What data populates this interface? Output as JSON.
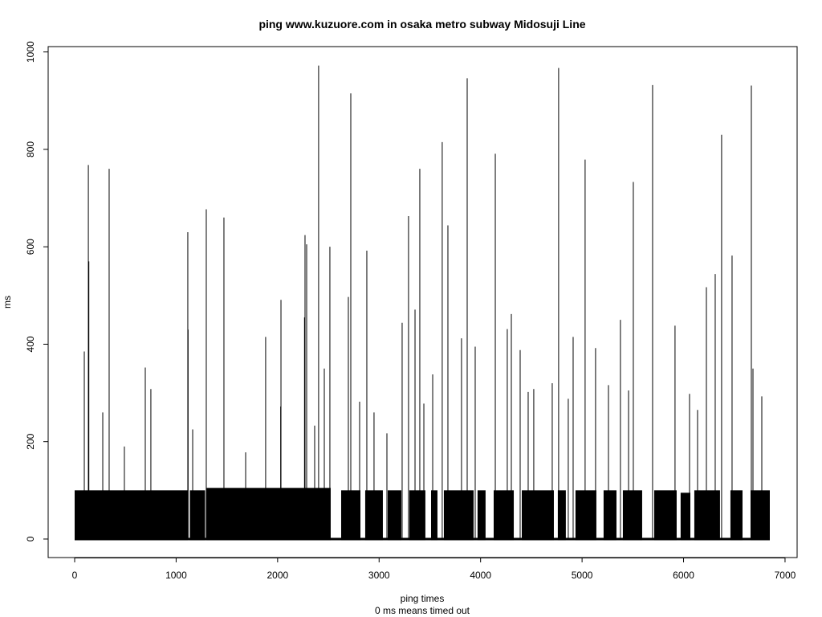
{
  "chart_data": {
    "type": "spike",
    "title": "ping www.kuzuore.com in osaka metro subway Midosuji Line",
    "x_label": "ping times",
    "x_sublabel": "0 ms means timed out",
    "y_label": "ms",
    "color": "#000000",
    "xlim": [
      -261,
      7119
    ],
    "ylim": [
      -38,
      1011
    ],
    "xticks": [
      0,
      1000,
      2000,
      3000,
      4000,
      5000,
      6000,
      7000
    ],
    "yticks": [
      0,
      200,
      400,
      600,
      800,
      1000
    ],
    "blocks": [
      {
        "x": [
          0,
          6850
        ],
        "value": 0
      },
      {
        "x": [
          0,
          1115
        ],
        "value": 100
      },
      {
        "x": [
          1135,
          1285
        ],
        "value": 100
      },
      {
        "x": [
          1300,
          2523
        ],
        "value": 105
      },
      {
        "x": [
          2626,
          2816
        ],
        "value": 100
      },
      {
        "x": [
          2863,
          3037
        ],
        "value": 100
      },
      {
        "x": [
          3085,
          3219
        ],
        "value": 100
      },
      {
        "x": [
          3298,
          3456
        ],
        "value": 100
      },
      {
        "x": [
          3512,
          3575
        ],
        "value": 100
      },
      {
        "x": [
          3638,
          3931
        ],
        "value": 100
      },
      {
        "x": [
          3970,
          4049
        ],
        "value": 100
      },
      {
        "x": [
          4129,
          4327
        ],
        "value": 100
      },
      {
        "x": [
          4406,
          4722
        ],
        "value": 100
      },
      {
        "x": [
          4761,
          4840
        ],
        "value": 100
      },
      {
        "x": [
          4935,
          5141
        ],
        "value": 100
      },
      {
        "x": [
          5212,
          5339
        ],
        "value": 100
      },
      {
        "x": [
          5402,
          5592
        ],
        "value": 100
      },
      {
        "x": [
          5711,
          5932
        ],
        "value": 100
      },
      {
        "x": [
          5971,
          6067
        ],
        "value": 95
      },
      {
        "x": [
          6106,
          6359
        ],
        "value": 100
      },
      {
        "x": [
          6462,
          6581
        ],
        "value": 100
      },
      {
        "x": [
          6660,
          6850
        ],
        "value": 100
      }
    ],
    "x": [
      95,
      135,
      140,
      277,
      340,
      490,
      696,
      751,
      1115,
      1118,
      1163,
      1297,
      1471,
      1685,
      1882,
      2030,
      2033,
      2265,
      2270,
      2286,
      2365,
      2404,
      2460,
      2515,
      2697,
      2721,
      2808,
      2879,
      2950,
      3077,
      3227,
      3290,
      3354,
      3401,
      3441,
      3528,
      3622,
      3678,
      3812,
      3868,
      3947,
      4145,
      4263,
      4303,
      4390,
      4469,
      4524,
      4706,
      4769,
      4864,
      4912,
      5030,
      5133,
      5260,
      5378,
      5458,
      5505,
      5695,
      5916,
      6059,
      6138,
      6225,
      6312,
      6375,
      6478,
      6668,
      6684,
      6771
    ],
    "values": [
      385,
      768,
      570,
      260,
      760,
      190,
      352,
      308,
      630,
      430,
      225,
      677,
      660,
      178,
      415,
      272,
      491,
      455,
      624,
      605,
      233,
      972,
      350,
      600,
      497,
      915,
      282,
      592,
      260,
      217,
      444,
      663,
      471,
      760,
      278,
      338,
      815,
      644,
      412,
      946,
      395,
      791,
      431,
      462,
      388,
      302,
      308,
      320,
      967,
      288,
      415,
      779,
      392,
      316,
      450,
      305,
      733,
      932,
      438,
      298,
      265,
      517,
      544,
      830,
      582,
      931,
      350,
      293
    ]
  }
}
